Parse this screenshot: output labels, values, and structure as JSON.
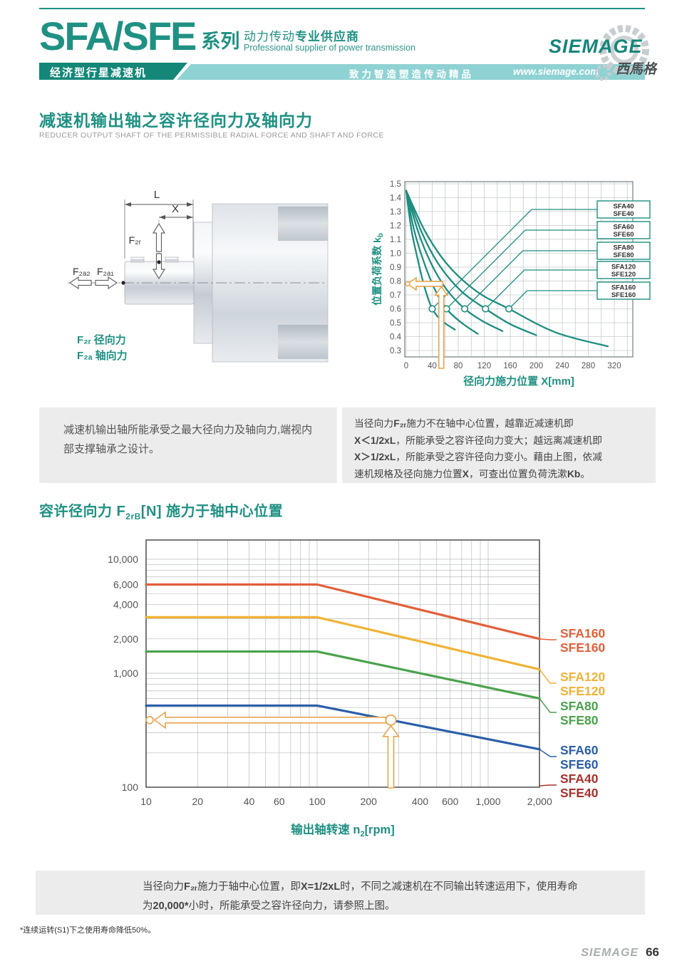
{
  "page": {
    "header": {
      "series_logo": "SFA/SFE",
      "series_suffix": "系列",
      "tagline_cn_normal": "动力传动",
      "tagline_cn_bold": "专业供应商",
      "tagline_en": "Professional supplier of power transmission",
      "banner_left": "经济型行星减速机",
      "banner_slogan": "致力智造塑造传动精品",
      "banner_url": "www.siemage.com",
      "brand_name": "SIEMAGE",
      "brand_cn": "西馬格"
    },
    "section1": {
      "title": "减速机输出轴之容许径向力及轴向力",
      "subtitle": "REDUCER OUTPUT SHAFT OF THE PERMISSIBLE RADIAL FORCE AND SHAFT AND FORCE"
    },
    "diagram": {
      "dim_L": "L",
      "dim_X": "X",
      "force_radial": "F₂ᵣ",
      "force_axial_2": "F₂ₐ₂",
      "force_axial_1": "F₂ₐ₁",
      "legend_radial": "F₂ᵣ 径向力",
      "legend_axial": "F₂ₐ 轴向力"
    },
    "note_left_lines": [
      [
        {
          "t": "减速机输出轴所能承受之最大径向力及轴向力,端视内"
        }
      ],
      [
        {
          "t": "部支撑轴承之设计。"
        }
      ]
    ],
    "note_right_lines": [
      [
        {
          "t": "当径向力"
        },
        {
          "t": "F₂ᵣ",
          "b": 1
        },
        {
          "t": "施力不在轴中心位置，越靠近减速机即"
        }
      ],
      [
        {
          "t": "X＜1/2xL",
          "b": 1
        },
        {
          "t": "，所能承受之容许径向力变大；越远离减速机即"
        }
      ],
      [
        {
          "t": "X＞1/2xL",
          "b": 1
        },
        {
          "t": "，所能承受之容许径向力变小。藉由上图，依减"
        }
      ],
      [
        {
          "t": "速机规格及径向施力位置"
        },
        {
          "t": "X",
          "b": 1
        },
        {
          "t": "，可查出位置负荷洗漱"
        },
        {
          "t": "Kb",
          "b": 1
        },
        {
          "t": "。"
        }
      ]
    ],
    "section2_heading": {
      "pre": "容许径向力 F",
      "sub": "2rB",
      "post": "[N] 施力于轴中心位置"
    },
    "note_bottom_lines": [
      [
        {
          "t": "当径向力"
        },
        {
          "t": "F₂ᵣ",
          "b": 1
        },
        {
          "t": "施力于轴中心位置，即"
        },
        {
          "t": "X=1/2xL",
          "b": 1
        },
        {
          "t": "时，不同之减速机在不同输出转速运用下，使用寿命"
        }
      ],
      [
        {
          "t": "为"
        },
        {
          "t": "20,000*",
          "b": 1
        },
        {
          "t": "小时，所能承受之容许径向力，请参照上图。"
        }
      ]
    ],
    "footnote": "*连续运转(S1)下之使用寿命降低50%。",
    "footer": {
      "brand": "SIEMAGE",
      "page_number": "66"
    }
  },
  "colors": {
    "teal": "#1f9183",
    "banner_dark": "#148779",
    "banner_light": "#8fd2d3",
    "chart_line_teal": "#1e8e80",
    "annotation_orange": "#e8a44c",
    "note_bg": "#ececec"
  },
  "chart_data": [
    {
      "name": "position-load-factor-chart",
      "type": "line",
      "title": "",
      "xlabel": "径向力施力位置 X[mm]",
      "ylabel_main": "位置负荷系数 k",
      "ylabel_sub": "b",
      "xlim": [
        0,
        348
      ],
      "ylim": [
        0.3,
        1.5
      ],
      "xticks": [
        0,
        40,
        80,
        120,
        160,
        200,
        240,
        280,
        320
      ],
      "yticks": [
        0.3,
        0.4,
        0.5,
        0.6,
        0.7,
        0.8,
        0.9,
        1.0,
        1.1,
        1.2,
        1.3,
        1.4,
        1.5
      ],
      "grid": true,
      "legend_position": "right",
      "line_color": "#1e8e80",
      "marker_y": 0.6,
      "series": [
        {
          "legend1": "SFA40",
          "legend2": "SFE40",
          "marker_x": 40,
          "points": [
            [
              0,
              1.45
            ],
            [
              8,
              1.17
            ],
            [
              18,
              0.95
            ],
            [
              28,
              0.76
            ],
            [
              40,
              0.6
            ],
            [
              56,
              0.51
            ],
            [
              75,
              0.45
            ]
          ]
        },
        {
          "legend1": "SFA60",
          "legend2": "SFE60",
          "marker_x": 62,
          "points": [
            [
              0,
              1.45
            ],
            [
              12,
              1.17
            ],
            [
              27,
              0.94
            ],
            [
              44,
              0.74
            ],
            [
              62,
              0.6
            ],
            [
              85,
              0.5
            ],
            [
              110,
              0.42
            ]
          ]
        },
        {
          "legend1": "SFA80",
          "legend2": "SFE80",
          "marker_x": 90,
          "points": [
            [
              0,
              1.45
            ],
            [
              18,
              1.16
            ],
            [
              38,
              0.93
            ],
            [
              62,
              0.74
            ],
            [
              90,
              0.6
            ],
            [
              118,
              0.51
            ],
            [
              148,
              0.44
            ]
          ]
        },
        {
          "legend1": "SFA120",
          "legend2": "SFE120",
          "marker_x": 122,
          "points": [
            [
              0,
              1.45
            ],
            [
              24,
              1.15
            ],
            [
              50,
              0.92
            ],
            [
              84,
              0.73
            ],
            [
              122,
              0.6
            ],
            [
              160,
              0.49
            ],
            [
              200,
              0.41
            ]
          ]
        },
        {
          "legend1": "SFA160",
          "legend2": "SFE160",
          "marker_x": 158,
          "points": [
            [
              0,
              1.45
            ],
            [
              30,
              1.15
            ],
            [
              65,
              0.91
            ],
            [
              110,
              0.72
            ],
            [
              158,
              0.6
            ],
            [
              230,
              0.43
            ],
            [
              310,
              0.33
            ]
          ]
        }
      ],
      "annotation": {
        "x": 54,
        "y": 0.78,
        "color": "#e8a44c"
      }
    },
    {
      "name": "permissible-radial-force-chart",
      "type": "line",
      "scale": "log-log",
      "xlabel_pre": "输出轴转速 n",
      "xlabel_sub": "2",
      "xlabel_post": "[rpm]",
      "xlim": [
        10,
        2000
      ],
      "ylim": [
        100,
        14800
      ],
      "xtick_values": [
        10,
        20,
        40,
        60,
        100,
        200,
        400,
        600,
        1000,
        2000
      ],
      "xtick_labels": [
        "10",
        "20",
        "40",
        "60",
        "100",
        "200",
        "400",
        "600",
        "1,000",
        "2,000"
      ],
      "ytick_values": [
        100,
        1000,
        2000,
        4000,
        6000,
        10000
      ],
      "ytick_labels": [
        "100",
        "1,000",
        "2,000",
        "4,000",
        "6,000",
        "10,000"
      ],
      "grid": true,
      "series": [
        {
          "label1": "SFA160",
          "label2": "SFE160",
          "color": "#e2603a",
          "points": [
            [
              10,
              6000
            ],
            [
              100,
              6000
            ],
            [
              2000,
              2000
            ]
          ]
        },
        {
          "label1": "SFA120",
          "label2": "SFE120",
          "color": "#f2b236",
          "points": [
            [
              10,
              3100
            ],
            [
              100,
              3100
            ],
            [
              2000,
              1080
            ]
          ]
        },
        {
          "label1": "SFA80",
          "label2": "SFE80",
          "color": "#4aa24c",
          "points": [
            [
              10,
              1550
            ],
            [
              100,
              1550
            ],
            [
              2000,
              600
            ]
          ]
        },
        {
          "label1": "SFA60",
          "label2": "SFE60",
          "color": "#2b5ea9",
          "points": [
            [
              10,
              520
            ],
            [
              100,
              520
            ],
            [
              2000,
              215
            ]
          ]
        },
        {
          "label1": "SFA40",
          "label2": "SFE40",
          "color": "#a8312c",
          "points": []
        }
      ],
      "annotation": {
        "x": 270,
        "y": 388,
        "color": "#e8a44c"
      }
    }
  ]
}
